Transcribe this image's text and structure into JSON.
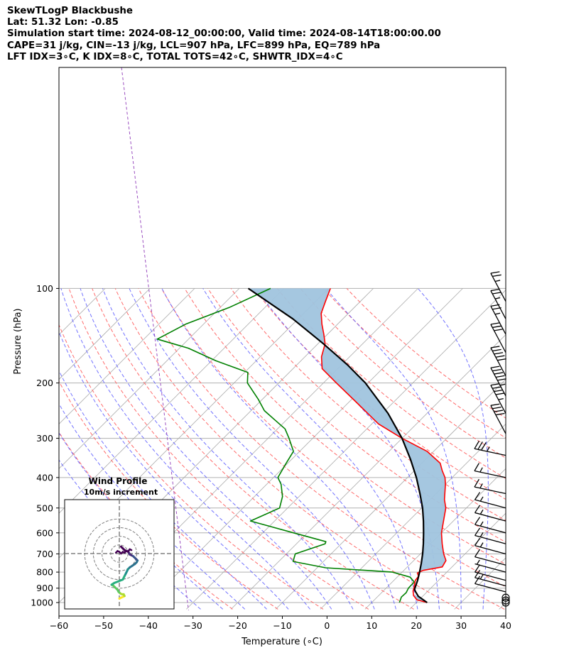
{
  "header": {
    "line1": "SkewTLogP Blackbushe",
    "line2": "Lat: 51.32   Lon: -0.85",
    "line3": "Simulation start time: 2024-08-12_00:00:00, Valid time: 2024-08-14T18:00:00.00",
    "line4": "CAPE=31 j/kg, CIN=-13 j/kg, LCL=907 hPa, LFC=899 hPa, EQ=789 hPa",
    "line5": "LFT IDX=3∘C, K IDX=8∘C, TOTAL TOTS=42∘C, SHWTR_IDX=4∘C"
  },
  "chart_data": [
    {
      "type": "line",
      "subtype": "skew-t log-p",
      "xlabel": "Temperature (∘C)",
      "ylabel": "Pressure (hPa)",
      "xlim": [
        -60,
        40
      ],
      "ylim": [
        1050,
        100
      ],
      "y_scale": "log",
      "x_ticks": [
        -60,
        -50,
        -40,
        -30,
        -20,
        -10,
        0,
        10,
        20,
        30,
        40
      ],
      "x_tick_labels": [
        "−60",
        "−50",
        "−40",
        "−30",
        "−20",
        "−10",
        "0",
        "10",
        "20",
        "30",
        "40"
      ],
      "y_ticks": [
        100,
        200,
        300,
        400,
        500,
        600,
        700,
        800,
        900,
        1000
      ],
      "y_tick_labels": [
        "100",
        "200",
        "300",
        "400",
        "500",
        "600",
        "700",
        "800",
        "900",
        "1000"
      ],
      "grid": true,
      "series": [
        {
          "role": "temperature",
          "color": "#ff0000",
          "points": [
            [
              1000,
              22.4
            ],
            [
              980,
              19.5
            ],
            [
              950,
              17.8
            ],
            [
              920,
              16.7
            ],
            [
              900,
              16.2
            ],
            [
              850,
              14.8
            ],
            [
              825,
              14.6
            ],
            [
              805,
              13.6
            ],
            [
              790,
              14.3
            ],
            [
              770,
              17.8
            ],
            [
              735,
              17.2
            ],
            [
              700,
              15.2
            ],
            [
              650,
              12.6
            ],
            [
              600,
              10.0
            ],
            [
              550,
              7.8
            ],
            [
              500,
              5.4
            ],
            [
              470,
              3.2
            ],
            [
              420,
              0.0
            ],
            [
              400,
              -1.6
            ],
            [
              380,
              -3.8
            ],
            [
              360,
              -5.9
            ],
            [
              330,
              -11.5
            ],
            [
              300,
              -20.0
            ],
            [
              270,
              -28.5
            ],
            [
              230,
              -38.4
            ],
            [
              200,
              -47.1
            ],
            [
              180,
              -53.5
            ],
            [
              165,
              -56.3
            ],
            [
              150,
              -58.4
            ],
            [
              140,
              -60.8
            ],
            [
              130,
              -63.5
            ],
            [
              120,
              -66.1
            ],
            [
              110,
              -67.8
            ],
            [
              100,
              -69.6
            ]
          ]
        },
        {
          "role": "dewpoint",
          "color": "#008000",
          "points": [
            [
              1000,
              16.2
            ],
            [
              960,
              15.4
            ],
            [
              930,
              15.5
            ],
            [
              900,
              15.0
            ],
            [
              860,
              14.9
            ],
            [
              830,
              12.9
            ],
            [
              800,
              7.8
            ],
            [
              775,
              -8.1
            ],
            [
              740,
              -16.8
            ],
            [
              700,
              -18.0
            ],
            [
              650,
              -13.6
            ],
            [
              640,
              -13.9
            ],
            [
              600,
              -23.1
            ],
            [
              550,
              -35.4
            ],
            [
              500,
              -31.8
            ],
            [
              460,
              -33.7
            ],
            [
              420,
              -36.8
            ],
            [
              400,
              -39.0
            ],
            [
              365,
              -40.2
            ],
            [
              330,
              -41.4
            ],
            [
              300,
              -45.3
            ],
            [
              280,
              -48.3
            ],
            [
              265,
              -51.9
            ],
            [
              245,
              -57.0
            ],
            [
              225,
              -61.0
            ],
            [
              200,
              -67.0
            ],
            [
              185,
              -69.3
            ],
            [
              170,
              -79.0
            ],
            [
              155,
              -88.0
            ],
            [
              145,
              -97.0
            ],
            [
              130,
              -94.0
            ],
            [
              115,
              -88.0
            ],
            [
              100,
              -83.0
            ]
          ]
        },
        {
          "role": "parcel",
          "color": "#000000",
          "points": [
            [
              1000,
              22.4
            ],
            [
              955,
              19.0
            ],
            [
              920,
              17.2
            ],
            [
              907,
              16.6
            ],
            [
              880,
              16.0
            ],
            [
              850,
              15.3
            ],
            [
              800,
              13.9
            ],
            [
              750,
              12.3
            ],
            [
              700,
              10.5
            ],
            [
              650,
              8.4
            ],
            [
              600,
              6.0
            ],
            [
              550,
              3.3
            ],
            [
              500,
              0.2
            ],
            [
              450,
              -3.6
            ],
            [
              400,
              -8.0
            ],
            [
              350,
              -13.4
            ],
            [
              300,
              -20.0
            ],
            [
              250,
              -28.7
            ],
            [
              200,
              -40.6
            ],
            [
              175,
              -48.7
            ],
            [
              150,
              -58.8
            ],
            [
              125,
              -71.2
            ],
            [
              100,
              -88.0
            ]
          ]
        }
      ],
      "cape_fill": {
        "color": "#a0c4de",
        "between": [
          "temperature",
          "parcel"
        ]
      },
      "background_lines": {
        "isotherms": {
          "color": "#aaaaaa",
          "style": "solid",
          "from": -120,
          "to": 40,
          "step": 10
        },
        "dry_adiabats": {
          "color": "#ff6b6b",
          "style": "dashed",
          "theta_k": [
            250,
            260,
            270,
            280,
            290,
            300,
            310,
            320,
            330,
            340,
            350,
            360,
            370,
            380,
            390,
            400
          ]
        },
        "moist_adiabats": {
          "color": "#5b5bff",
          "style": "dashed",
          "start_temps_1000hpa": [
            -30,
            -25,
            -20,
            -15,
            -10,
            -5,
            0,
            5,
            10,
            15,
            20,
            25,
            30,
            35
          ]
        },
        "special_lines": [
          {
            "color": "#9b4fc0",
            "style": "dashed"
          },
          {
            "color": "#9b4fc0",
            "style": "dashed"
          }
        ]
      },
      "wind_barbs": [
        {
          "p": 1000,
          "kt": 0
        },
        {
          "p": 985,
          "kt": 0
        },
        {
          "p": 965,
          "kt": 0
        },
        {
          "p": 925,
          "kt": 10
        },
        {
          "p": 885,
          "kt": 15
        },
        {
          "p": 850,
          "kt": 10
        },
        {
          "p": 800,
          "kt": 5
        },
        {
          "p": 760,
          "kt": 10
        },
        {
          "p": 700,
          "kt": 15
        },
        {
          "p": 650,
          "kt": 15
        },
        {
          "p": 600,
          "kt": 15
        },
        {
          "p": 550,
          "kt": 15
        },
        {
          "p": 500,
          "kt": 15
        },
        {
          "p": 450,
          "kt": 15
        },
        {
          "p": 400,
          "kt": 15
        },
        {
          "p": 340,
          "kt": 35
        },
        {
          "p": 290,
          "kt": 40
        },
        {
          "p": 250,
          "kt": 45
        },
        {
          "p": 220,
          "kt": 55
        },
        {
          "p": 190,
          "kt": 50
        },
        {
          "p": 160,
          "kt": 30
        },
        {
          "p": 140,
          "kt": 25
        },
        {
          "p": 125,
          "kt": 25
        },
        {
          "p": 110,
          "kt": 25
        }
      ]
    },
    {
      "type": "scatter",
      "subtype": "hodograph",
      "title": "Wind Profile\n10m/s increment",
      "title_line1": "Wind Profile",
      "title_line2": "10m/s increment",
      "ring_step": 10,
      "rings": 4,
      "colormap": "viridis-ascending-from-upper-levels",
      "points_uv": [
        [
          2,
          8
        ],
        [
          4,
          6
        ],
        [
          6,
          4
        ],
        [
          8,
          3
        ],
        [
          10,
          3
        ],
        [
          11,
          1
        ],
        [
          12,
          -1
        ],
        [
          14,
          -2
        ],
        [
          16,
          -3
        ],
        [
          17,
          -4
        ],
        [
          18,
          -5
        ],
        [
          19,
          -6
        ],
        [
          20,
          -7
        ],
        [
          21,
          -8
        ],
        [
          20,
          -10
        ],
        [
          18,
          -12
        ],
        [
          15,
          -14
        ],
        [
          12,
          -16
        ],
        [
          10,
          -18
        ],
        [
          9,
          -20
        ],
        [
          8,
          -22
        ],
        [
          7,
          -24
        ],
        [
          6,
          -26
        ],
        [
          5,
          -28
        ],
        [
          4,
          -30
        ],
        [
          -6,
          -34
        ],
        [
          -9,
          -36
        ],
        [
          -7,
          -37
        ],
        [
          -5,
          -39
        ],
        [
          -2,
          -42
        ],
        [
          -1,
          -44
        ],
        [
          0,
          -45
        ],
        [
          1,
          -46
        ],
        [
          3,
          -47
        ],
        [
          5,
          -47
        ],
        [
          6,
          -49
        ],
        [
          4,
          -50
        ],
        [
          2,
          -51
        ],
        [
          0,
          -52
        ]
      ]
    }
  ]
}
